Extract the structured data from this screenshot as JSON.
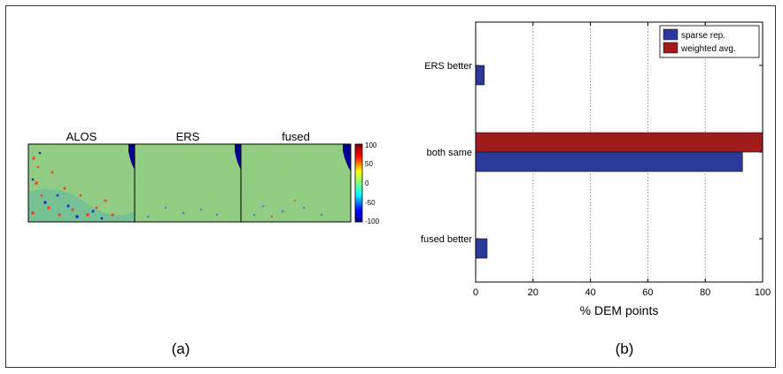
{
  "panel_a": {
    "label": "(a)",
    "map_titles": [
      "ALOS",
      "ERS",
      "fused"
    ],
    "colorbar": {
      "ticks": [
        "100",
        "50",
        "0",
        "-50",
        "-100"
      ],
      "range": [
        -100,
        100
      ]
    }
  },
  "panel_b": {
    "label": "(b)"
  },
  "chart_data": {
    "type": "bar",
    "orientation": "horizontal",
    "categories": [
      "ERS better",
      "both same",
      "fused better"
    ],
    "series": [
      {
        "name": "sparse rep.",
        "color": "#2b3a9a",
        "values": [
          3,
          93,
          4
        ]
      },
      {
        "name": "weighted avg.",
        "color": "#a01c1c",
        "values": [
          0,
          100,
          0
        ]
      }
    ],
    "xlabel": "% DEM points",
    "xlim": [
      0,
      100
    ],
    "xticks": [
      0,
      20,
      40,
      60,
      80,
      100
    ],
    "grid": "x-dotted",
    "legend_position": "top-right"
  }
}
